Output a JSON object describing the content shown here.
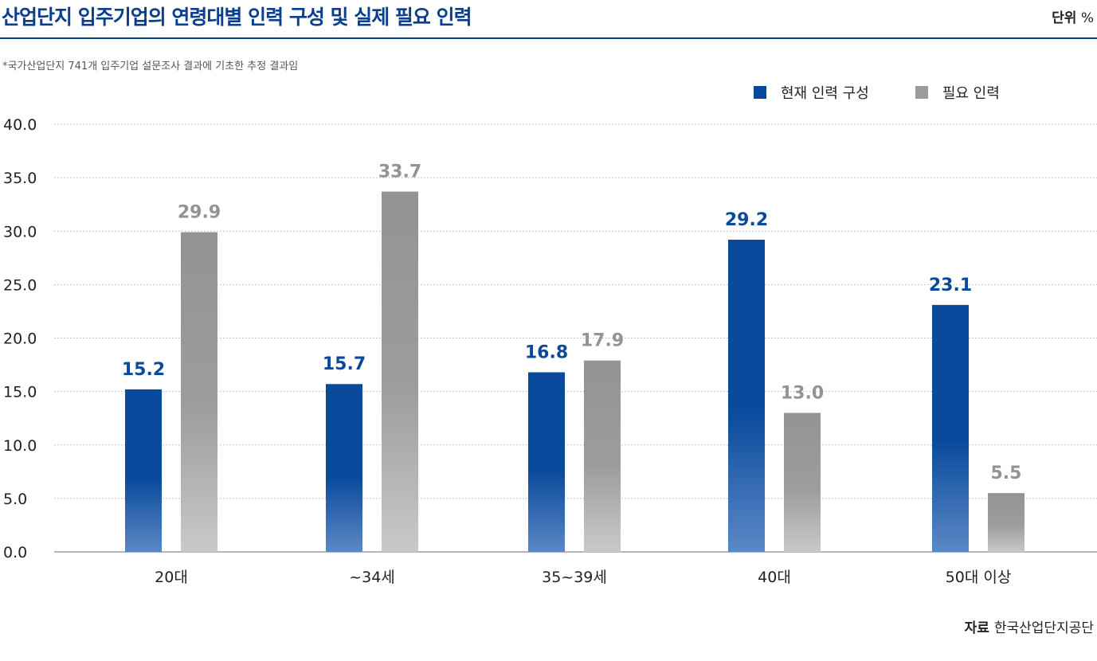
{
  "header": {
    "title": "산업단지 입주기업의 연령대별 인력 구성 및 실제 필요 인력",
    "unit_label": "단위",
    "unit_value": "%"
  },
  "note": "*국가산업단지 741개 입주기업 설문조사 결과에 기초한 추정 결과임",
  "source": {
    "label": "자료",
    "value": "한국산업단지공단"
  },
  "colors": {
    "current": "#0a4a9c",
    "required": "#9b9b9b",
    "title": "#0a3f8f"
  },
  "chart_data": {
    "type": "bar",
    "categories": [
      "20대",
      "~34세",
      "35~39세",
      "40대",
      "50대 이상"
    ],
    "series": [
      {
        "name": "현재 인력 구성",
        "values": [
          15.2,
          15.7,
          16.8,
          29.2,
          23.1
        ]
      },
      {
        "name": "필요 인력",
        "values": [
          29.9,
          33.7,
          17.9,
          13.0,
          5.5
        ]
      }
    ],
    "y_ticks": [
      "0.0",
      "5.0",
      "10.0",
      "15.0",
      "20.0",
      "25.0",
      "30.0",
      "35.0",
      "40.0"
    ],
    "ylim": [
      0,
      40
    ],
    "grid": true,
    "legend_position": "top-right",
    "xlabel": "",
    "ylabel": ""
  }
}
